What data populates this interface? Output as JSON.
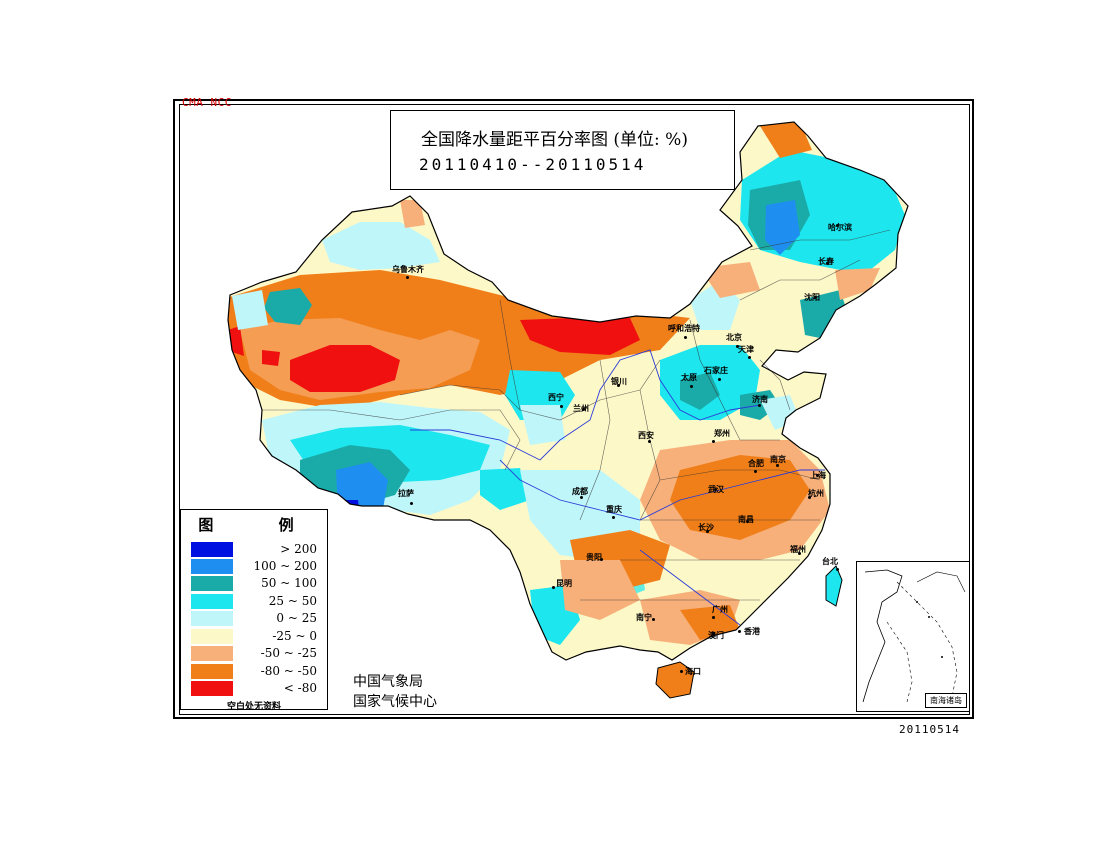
{
  "header": {
    "credit": "CMA  NCC",
    "title": "全国降水量距平百分率图 (单位: %)",
    "date_range": "20110410--20110514"
  },
  "legend": {
    "title": "图 例",
    "items": [
      {
        "label": "> 200",
        "color": "#0010e0"
      },
      {
        "label": "100 ~ 200",
        "color": "#1e8ff0"
      },
      {
        "label": "50 ~ 100",
        "color": "#1aaaa8"
      },
      {
        "label": "25 ~ 50",
        "color": "#1ee6ee"
      },
      {
        "label": "0 ~ 25",
        "color": "#bff6f9"
      },
      {
        "label": "-25 ~ 0",
        "color": "#fdf8c8"
      },
      {
        "label": "-50 ~ -25",
        "color": "#f7b07a"
      },
      {
        "label": "-80 ~ -50",
        "color": "#f07f1a"
      },
      {
        "label": "< -80",
        "color": "#f01010"
      }
    ],
    "note": "空白处无资料"
  },
  "agency": {
    "line1": "中国气象局",
    "line2": "国家气候中心"
  },
  "inset": {
    "label": "南海诸岛"
  },
  "footer": {
    "issue_date": "20110514"
  },
  "cities": [
    {
      "name": "乌鲁木齐"
    },
    {
      "name": "拉萨"
    },
    {
      "name": "西宁"
    },
    {
      "name": "兰州"
    },
    {
      "name": "银川"
    },
    {
      "name": "呼和浩特"
    },
    {
      "name": "太原"
    },
    {
      "name": "石家庄"
    },
    {
      "name": "北京"
    },
    {
      "name": "天津"
    },
    {
      "name": "济南"
    },
    {
      "name": "郑州"
    },
    {
      "name": "西安"
    },
    {
      "name": "成都"
    },
    {
      "name": "重庆"
    },
    {
      "name": "贵阳"
    },
    {
      "name": "昆明"
    },
    {
      "name": "南宁"
    },
    {
      "name": "广州"
    },
    {
      "name": "海口"
    },
    {
      "name": "香港"
    },
    {
      "name": "澳门"
    },
    {
      "name": "长沙"
    },
    {
      "name": "武汉"
    },
    {
      "name": "南昌"
    },
    {
      "name": "福州"
    },
    {
      "name": "台北"
    },
    {
      "name": "上海"
    },
    {
      "name": "南京"
    },
    {
      "name": "合肥"
    },
    {
      "name": "杭州"
    },
    {
      "name": "沈阳"
    },
    {
      "name": "长春"
    },
    {
      "name": "哈尔滨"
    }
  ]
}
